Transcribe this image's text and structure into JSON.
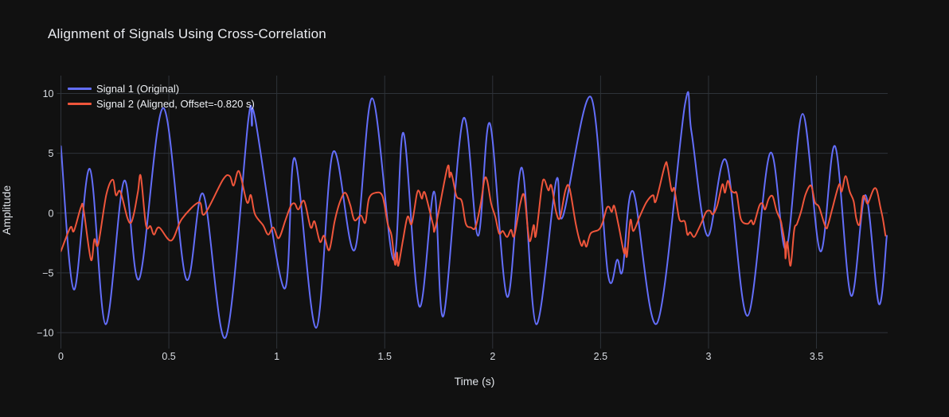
{
  "title": "Alignment of Signals Using Cross-Correlation",
  "colors": {
    "background": "#111111",
    "grid": "#2e3339",
    "zeroline": "#3b4148",
    "tick_text": "#d9dde3",
    "signal1": "#636efa",
    "signal2": "#ef553b"
  },
  "legend": {
    "items": [
      {
        "label": "Signal 1 (Original)",
        "color": "#636efa"
      },
      {
        "label": "Signal 2 (Aligned, Offset=-0.820 s)",
        "color": "#ef553b"
      }
    ]
  },
  "chart_data": {
    "type": "line",
    "title": "Alignment of Signals Using Cross-Correlation",
    "xlabel": "Time (s)",
    "ylabel": "Amplitude",
    "xlim": [
      0,
      3.83
    ],
    "ylim": [
      -11,
      11.5
    ],
    "grid": true,
    "legend_position": "top-left",
    "x_ticks": [
      0,
      0.5,
      1,
      1.5,
      2,
      2.5,
      3,
      3.5
    ],
    "x_tick_labels": [
      "0",
      "0.5",
      "1",
      "1.5",
      "2",
      "2.5",
      "3",
      "3.5"
    ],
    "y_ticks": [
      -10,
      -5,
      0,
      5,
      10
    ],
    "y_tick_labels": [
      "−10",
      "−5",
      "0",
      "5",
      "10"
    ],
    "series": [
      {
        "name": "Signal 1 (Original)",
        "color": "#636efa",
        "points": [
          [
            0,
            5.6
          ],
          [
            0.06,
            -6.4
          ],
          [
            0.134,
            3.7
          ],
          [
            0.207,
            -9.3
          ],
          [
            0.293,
            2.7
          ],
          [
            0.363,
            -5.5
          ],
          [
            0.474,
            8.8
          ],
          [
            0.58,
            -5.5
          ],
          [
            0.659,
            1.6
          ],
          [
            0.763,
            -10.4
          ],
          [
            0.868,
            7.8
          ],
          [
            0.885,
            7.3
          ],
          [
            0.9,
            7.9
          ],
          [
            1.034,
            -6.3
          ],
          [
            1.083,
            4.6
          ],
          [
            1.182,
            -9.6
          ],
          [
            1.261,
            5.1
          ],
          [
            1.36,
            -3.1
          ],
          [
            1.442,
            9.6
          ],
          [
            1.54,
            -3.9
          ],
          [
            1.587,
            6.7
          ],
          [
            1.66,
            -7.8
          ],
          [
            1.729,
            1.8
          ],
          [
            1.772,
            -8.6
          ],
          [
            1.864,
            7.9
          ],
          [
            1.932,
            -1.9
          ],
          [
            1.987,
            7.5
          ],
          [
            2.067,
            -7.0
          ],
          [
            2.135,
            3.8
          ],
          [
            2.202,
            -9.3
          ],
          [
            2.294,
            2.7
          ],
          [
            2.325,
            -0.3
          ],
          [
            2.455,
            9.7
          ],
          [
            2.534,
            -5.1
          ],
          [
            2.577,
            -3.9
          ],
          [
            2.602,
            -4.8
          ],
          [
            2.651,
            1.8
          ],
          [
            2.762,
            -9.2
          ],
          [
            2.891,
            9.1
          ],
          [
            2.921,
            6.8
          ],
          [
            2.995,
            -1.9
          ],
          [
            3.081,
            4.4
          ],
          [
            3.18,
            -8.6
          ],
          [
            3.285,
            5.0
          ],
          [
            3.359,
            -3.0
          ],
          [
            3.436,
            8.3
          ],
          [
            3.518,
            -3.2
          ],
          [
            3.586,
            5.6
          ],
          [
            3.66,
            -6.9
          ],
          [
            3.727,
            1.5
          ],
          [
            3.789,
            -7.6
          ],
          [
            3.826,
            -1.9
          ]
        ]
      },
      {
        "name": "Signal 2 (Aligned, Offset=-0.820 s)",
        "color": "#ef553b",
        "points": [
          [
            0,
            -3.2
          ],
          [
            0.044,
            -1.2
          ],
          [
            0.06,
            -1.5
          ],
          [
            0.093,
            0.5
          ],
          [
            0.105,
            0.3
          ],
          [
            0.139,
            -3.9
          ],
          [
            0.155,
            -2.2
          ],
          [
            0.173,
            -2.6
          ],
          [
            0.21,
            1.5
          ],
          [
            0.24,
            2.8
          ],
          [
            0.255,
            1.5
          ],
          [
            0.275,
            1.8
          ],
          [
            0.308,
            -0.4
          ],
          [
            0.325,
            -0.8
          ],
          [
            0.34,
            0.1
          ],
          [
            0.357,
            1.8
          ],
          [
            0.37,
            3.1
          ],
          [
            0.394,
            -1.0
          ],
          [
            0.415,
            -1.1
          ],
          [
            0.431,
            -1.8
          ],
          [
            0.455,
            -1.2
          ],
          [
            0.511,
            -2.3
          ],
          [
            0.56,
            -0.5
          ],
          [
            0.64,
            0.9
          ],
          [
            0.665,
            -0.1
          ],
          [
            0.751,
            2.8
          ],
          [
            0.782,
            3.1
          ],
          [
            0.8,
            2.3
          ],
          [
            0.825,
            3.5
          ],
          [
            0.862,
            0.9
          ],
          [
            0.88,
            1.5
          ],
          [
            0.899,
            -0.1
          ],
          [
            0.936,
            -1.0
          ],
          [
            0.96,
            -1.8
          ],
          [
            0.984,
            -1.2
          ],
          [
            1.009,
            -2.1
          ],
          [
            1.04,
            -0.6
          ],
          [
            1.065,
            0.6
          ],
          [
            1.083,
            0.8
          ],
          [
            1.1,
            0.3
          ],
          [
            1.127,
            1.0
          ],
          [
            1.157,
            -1.2
          ],
          [
            1.175,
            -0.7
          ],
          [
            1.2,
            -2.4
          ],
          [
            1.219,
            -1.9
          ],
          [
            1.243,
            -3.1
          ],
          [
            1.268,
            -0.7
          ],
          [
            1.292,
            0.9
          ],
          [
            1.317,
            1.7
          ],
          [
            1.34,
            0.7
          ],
          [
            1.36,
            -0.6
          ],
          [
            1.39,
            -0.2
          ],
          [
            1.41,
            -0.8
          ],
          [
            1.427,
            1.2
          ],
          [
            1.458,
            1.7
          ],
          [
            1.49,
            1.4
          ],
          [
            1.514,
            -0.9
          ],
          [
            1.532,
            -1.9
          ],
          [
            1.548,
            -4.3
          ],
          [
            1.557,
            -3.3
          ],
          [
            1.563,
            -4.4
          ],
          [
            1.585,
            -2.2
          ],
          [
            1.606,
            -0.3
          ],
          [
            1.625,
            -0.9
          ],
          [
            1.649,
            1.6
          ],
          [
            1.66,
            1.8
          ],
          [
            1.672,
            1.2
          ],
          [
            1.686,
            1.7
          ],
          [
            1.723,
            -0.9
          ],
          [
            1.735,
            -1.2
          ],
          [
            1.79,
            3.8
          ],
          [
            1.8,
            3.0
          ],
          [
            1.806,
            3.4
          ],
          [
            1.815,
            2.9
          ],
          [
            1.833,
            1.4
          ],
          [
            1.857,
            1.0
          ],
          [
            1.876,
            -0.9
          ],
          [
            1.9,
            -1.2
          ],
          [
            1.92,
            -1.2
          ],
          [
            1.944,
            0.7
          ],
          [
            1.962,
            2.8
          ],
          [
            1.975,
            2.7
          ],
          [
            1.993,
            0.8
          ],
          [
            2.012,
            -0.3
          ],
          [
            2.03,
            -1.7
          ],
          [
            2.047,
            -1.5
          ],
          [
            2.067,
            -2.0
          ],
          [
            2.085,
            -1.4
          ],
          [
            2.1,
            -1.9
          ],
          [
            2.128,
            0.8
          ],
          [
            2.147,
            1.4
          ],
          [
            2.17,
            -2.3
          ],
          [
            2.19,
            -1.0
          ],
          [
            2.2,
            -1.9
          ],
          [
            2.227,
            2.1
          ],
          [
            2.239,
            2.8
          ],
          [
            2.258,
            1.9
          ],
          [
            2.272,
            2.3
          ],
          [
            2.294,
            0.1
          ],
          [
            2.312,
            -0.4
          ],
          [
            2.337,
            1.9
          ],
          [
            2.356,
            2.1
          ],
          [
            2.386,
            -1.0
          ],
          [
            2.411,
            -2.7
          ],
          [
            2.423,
            -2.3
          ],
          [
            2.435,
            -2.8
          ],
          [
            2.454,
            -1.7
          ],
          [
            2.491,
            -1.4
          ],
          [
            2.509,
            -0.8
          ],
          [
            2.528,
            0.4
          ],
          [
            2.54,
            0.5
          ],
          [
            2.552,
            0.1
          ],
          [
            2.563,
            0.6
          ],
          [
            2.583,
            -1.0
          ],
          [
            2.608,
            -3.3
          ],
          [
            2.615,
            -2.9
          ],
          [
            2.622,
            -3.6
          ],
          [
            2.638,
            -0.6
          ],
          [
            2.652,
            -1.5
          ],
          [
            2.681,
            -0.3
          ],
          [
            2.712,
            0.9
          ],
          [
            2.743,
            1.5
          ],
          [
            2.756,
            1.0
          ],
          [
            2.798,
            4.0
          ],
          [
            2.81,
            3.9
          ],
          [
            2.829,
            1.9
          ],
          [
            2.842,
            2.0
          ],
          [
            2.865,
            -0.5
          ],
          [
            2.89,
            -0.7
          ],
          [
            2.902,
            -1.8
          ],
          [
            2.915,
            -1.6
          ],
          [
            2.933,
            -2.0
          ],
          [
            2.952,
            -1.4
          ],
          [
            2.97,
            -0.7
          ],
          [
            2.989,
            0.1
          ],
          [
            3.007,
            0.2
          ],
          [
            3.02,
            -0.1
          ],
          [
            3.04,
            0.6
          ],
          [
            3.064,
            2.4
          ],
          [
            3.076,
            1.7
          ],
          [
            3.089,
            2.7
          ],
          [
            3.105,
            1.9
          ],
          [
            3.12,
            1.7
          ],
          [
            3.131,
            1.6
          ],
          [
            3.15,
            -0.5
          ],
          [
            3.18,
            -0.9
          ],
          [
            3.198,
            -0.6
          ],
          [
            3.21,
            -0.9
          ],
          [
            3.235,
            0.6
          ],
          [
            3.25,
            0.8
          ],
          [
            3.262,
            0.3
          ],
          [
            3.279,
            1.2
          ],
          [
            3.297,
            1.4
          ],
          [
            3.315,
            0.2
          ],
          [
            3.334,
            -0.6
          ],
          [
            3.34,
            -1.1
          ],
          [
            3.353,
            -2.5
          ],
          [
            3.357,
            -3.8
          ],
          [
            3.365,
            -2.4
          ],
          [
            3.38,
            -4.4
          ],
          [
            3.397,
            -1.4
          ],
          [
            3.41,
            -0.9
          ],
          [
            3.43,
            0.2
          ],
          [
            3.45,
            1.6
          ],
          [
            3.475,
            2.3
          ],
          [
            3.493,
            0.9
          ],
          [
            3.512,
            0.5
          ],
          [
            3.543,
            -1.2
          ],
          [
            3.555,
            -0.9
          ],
          [
            3.574,
            0.4
          ],
          [
            3.605,
            2.4
          ],
          [
            3.617,
            1.8
          ],
          [
            3.635,
            3.1
          ],
          [
            3.654,
            1.8
          ],
          [
            3.672,
            1.0
          ],
          [
            3.685,
            -0.5
          ],
          [
            3.7,
            -0.9
          ],
          [
            3.716,
            1.4
          ],
          [
            3.735,
            0.8
          ],
          [
            3.745,
            1.1
          ],
          [
            3.765,
            2.0
          ],
          [
            3.78,
            1.9
          ],
          [
            3.796,
            0.5
          ],
          [
            3.808,
            -0.5
          ],
          [
            3.82,
            -1.9
          ]
        ]
      }
    ]
  }
}
